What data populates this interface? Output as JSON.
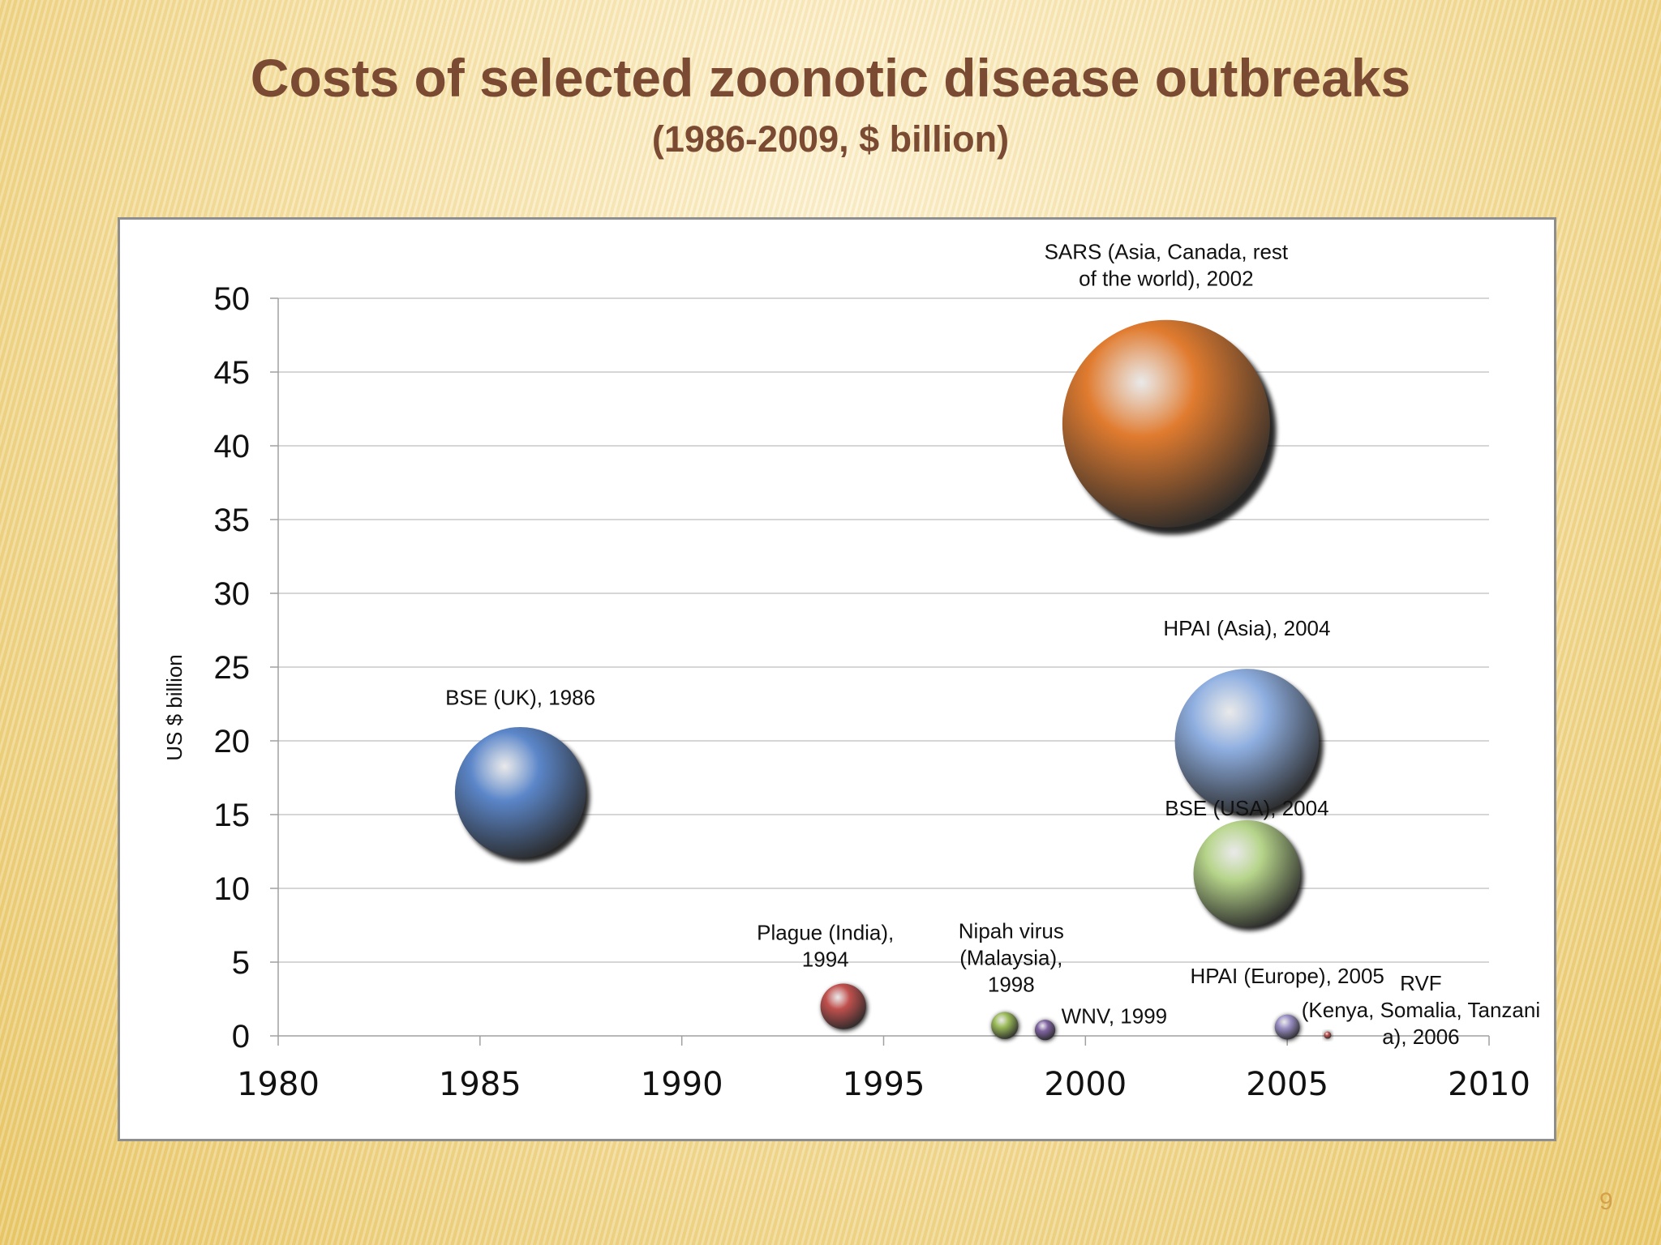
{
  "slide": {
    "title": "Costs of selected zoonotic disease outbreaks",
    "subtitle": "(1986-2009, $ billion)",
    "page_number": "9"
  },
  "chart_data": {
    "type": "bubble",
    "title": "",
    "xlabel": "",
    "ylabel": "US $ billion",
    "xlim": [
      1980,
      2010
    ],
    "ylim": [
      0,
      50
    ],
    "xticks": [
      1980,
      1985,
      1990,
      1995,
      2000,
      2005,
      2010
    ],
    "yticks": [
      0,
      5,
      10,
      15,
      20,
      25,
      30,
      35,
      40,
      45,
      50
    ],
    "grid": "horizontal",
    "points": [
      {
        "label_lines": [
          "BSE (UK), 1986"
        ],
        "x": 1986,
        "y": 16.5,
        "size": 16.5,
        "color": "#5b86c9"
      },
      {
        "label_lines": [
          "Plague (India),",
          "1994"
        ],
        "x": 1994,
        "y": 2,
        "size": 2,
        "color": "#c0504d"
      },
      {
        "label_lines": [
          "Nipah virus",
          "(Malaysia),",
          "1998"
        ],
        "x": 1998,
        "y": 0.7,
        "size": 0.7,
        "color": "#9bbb59"
      },
      {
        "label_lines": [
          "WNV, 1999"
        ],
        "x": 1999,
        "y": 0.4,
        "size": 0.4,
        "color": "#8064a2"
      },
      {
        "label_lines": [
          "SARS (Asia, Canada, rest",
          "of the world), 2002"
        ],
        "x": 2002,
        "y": 41.5,
        "size": 41.5,
        "color": "#e07b2f"
      },
      {
        "label_lines": [
          "HPAI (Asia), 2004"
        ],
        "x": 2004,
        "y": 20,
        "size": 20,
        "color": "#8eaee0"
      },
      {
        "label_lines": [
          "BSE (USA), 2004"
        ],
        "x": 2004,
        "y": 11,
        "size": 11,
        "color": "#b6d48a"
      },
      {
        "label_lines": [
          "HPAI (Europe), 2005"
        ],
        "x": 2005,
        "y": 0.6,
        "size": 0.6,
        "color": "#9a8fc4"
      },
      {
        "label_lines": [
          "RVF",
          "(Kenya, Somalia, Tanzani",
          "a), 2006"
        ],
        "x": 2006,
        "y": 0.05,
        "size": 0.05,
        "color": "#c0504d"
      }
    ]
  }
}
